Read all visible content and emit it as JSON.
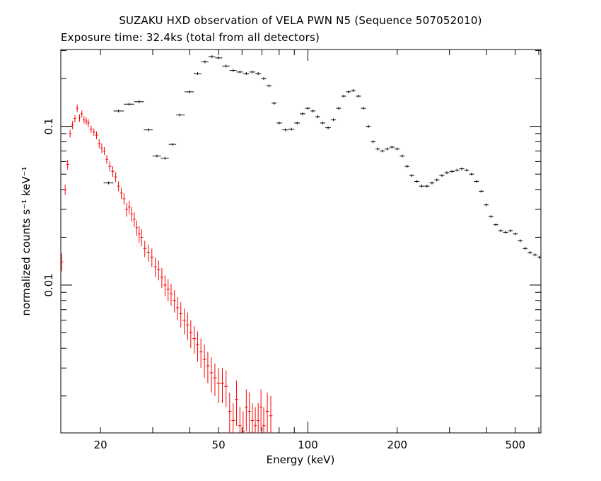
{
  "chart_data": {
    "type": "scatter",
    "title": "SUZAKU HXD observation of VELA PWN N5 (Sequence 507052010)",
    "subtitle": "Exposure time: 32.4ks (total from all detectors)",
    "xlabel": "Energy (keV)",
    "ylabel": "normalized counts s⁻¹ keV⁻¹",
    "xscale": "log",
    "yscale": "log",
    "xlim": [
      14.7,
      610
    ],
    "ylim": [
      0.00117,
      0.305
    ],
    "grid": false,
    "x_ticks": [
      {
        "value": 20,
        "label": "20"
      },
      {
        "value": 50,
        "label": "50"
      },
      {
        "value": 100,
        "label": "100"
      },
      {
        "value": 200,
        "label": "200"
      },
      {
        "value": 500,
        "label": "500"
      }
    ],
    "y_ticks": [
      {
        "value": 0.1,
        "label": "0.1"
      },
      {
        "value": 0.01,
        "label": "0.01"
      }
    ],
    "series": [
      {
        "color": "#ff0000",
        "points": [
          [
            14.8,
            0.014,
            0.0018
          ],
          [
            15.2,
            0.04,
            0.003
          ],
          [
            15.5,
            0.0575,
            0.004
          ],
          [
            15.8,
            0.09,
            0.005
          ],
          [
            16.1,
            0.102,
            0.006
          ],
          [
            16.4,
            0.112,
            0.006
          ],
          [
            16.7,
            0.13,
            0.007
          ],
          [
            17.0,
            0.113,
            0.006
          ],
          [
            17.3,
            0.12,
            0.006
          ],
          [
            17.6,
            0.11,
            0.006
          ],
          [
            17.9,
            0.108,
            0.006
          ],
          [
            18.2,
            0.105,
            0.006
          ],
          [
            18.6,
            0.096,
            0.005
          ],
          [
            19.0,
            0.092,
            0.005
          ],
          [
            19.4,
            0.088,
            0.005
          ],
          [
            19.8,
            0.078,
            0.005
          ],
          [
            20.2,
            0.073,
            0.005
          ],
          [
            20.6,
            0.07,
            0.004
          ],
          [
            21.0,
            0.062,
            0.004
          ],
          [
            21.5,
            0.056,
            0.004
          ],
          [
            22.0,
            0.052,
            0.004
          ],
          [
            22.5,
            0.048,
            0.0035
          ],
          [
            23.0,
            0.042,
            0.003
          ],
          [
            23.5,
            0.038,
            0.003
          ],
          [
            24.0,
            0.035,
            0.003
          ],
          [
            24.5,
            0.03,
            0.003
          ],
          [
            25.0,
            0.031,
            0.003
          ],
          [
            25.5,
            0.028,
            0.003
          ],
          [
            26.0,
            0.026,
            0.0028
          ],
          [
            26.5,
            0.023,
            0.0025
          ],
          [
            27.0,
            0.021,
            0.0025
          ],
          [
            27.5,
            0.02,
            0.0025
          ],
          [
            28.2,
            0.017,
            0.002
          ],
          [
            29.0,
            0.016,
            0.002
          ],
          [
            29.8,
            0.015,
            0.002
          ],
          [
            30.6,
            0.013,
            0.0018
          ],
          [
            31.4,
            0.0125,
            0.0018
          ],
          [
            32.2,
            0.0112,
            0.0016
          ],
          [
            33.0,
            0.01,
            0.0015
          ],
          [
            33.8,
            0.0094,
            0.0015
          ],
          [
            34.6,
            0.0088,
            0.0014
          ],
          [
            35.5,
            0.008,
            0.0013
          ],
          [
            36.4,
            0.0072,
            0.0012
          ],
          [
            37.3,
            0.0066,
            0.0012
          ],
          [
            38.3,
            0.006,
            0.0011
          ],
          [
            39.3,
            0.0056,
            0.0011
          ],
          [
            40.3,
            0.005,
            0.001
          ],
          [
            41.4,
            0.0046,
            0.0009
          ],
          [
            42.5,
            0.0042,
            0.0009
          ],
          [
            43.6,
            0.0038,
            0.0008
          ],
          [
            44.8,
            0.0034,
            0.0008
          ],
          [
            46.0,
            0.0031,
            0.0007
          ],
          [
            47.3,
            0.0028,
            0.0007
          ],
          [
            48.6,
            0.0026,
            0.0006
          ],
          [
            50.0,
            0.0024,
            0.0006
          ],
          [
            51.5,
            0.0024,
            0.0006
          ],
          [
            53.0,
            0.0023,
            0.0006
          ],
          [
            54.5,
            0.0016,
            0.0005
          ],
          [
            56.0,
            0.0014,
            0.0004
          ],
          [
            57.5,
            0.0019,
            0.0006
          ],
          [
            59.0,
            0.0013,
            0.0004
          ],
          [
            60.5,
            0.0012,
            0.0004
          ],
          [
            62.0,
            0.0017,
            0.0005
          ],
          [
            63.5,
            0.0016,
            0.0005
          ],
          [
            65.0,
            0.0014,
            0.0004
          ],
          [
            66.5,
            0.0013,
            0.0004
          ],
          [
            68.0,
            0.0014,
            0.0004
          ],
          [
            69.5,
            0.0017,
            0.0005
          ],
          [
            71.0,
            0.0013,
            0.0004
          ],
          [
            73.0,
            0.0016,
            0.0005
          ],
          [
            75.0,
            0.0015,
            0.0005
          ]
        ]
      },
      {
        "color": "#000000",
        "points": [
          [
            21.3,
            0.044
          ],
          [
            23.0,
            0.125
          ],
          [
            25.0,
            0.138
          ],
          [
            27.0,
            0.143
          ],
          [
            29.0,
            0.095
          ],
          [
            31.0,
            0.065
          ],
          [
            33.0,
            0.063
          ],
          [
            35.0,
            0.077
          ],
          [
            37.0,
            0.118
          ],
          [
            40.0,
            0.165
          ],
          [
            42.5,
            0.215
          ],
          [
            45.0,
            0.255
          ],
          [
            47.5,
            0.275
          ],
          [
            50.0,
            0.27
          ],
          [
            53.0,
            0.24
          ],
          [
            56.0,
            0.225
          ],
          [
            59.0,
            0.22
          ],
          [
            62.0,
            0.215
          ],
          [
            65.0,
            0.22
          ],
          [
            68.0,
            0.215
          ],
          [
            71.0,
            0.2
          ],
          [
            74.0,
            0.18
          ],
          [
            77.0,
            0.14
          ],
          [
            80.0,
            0.105
          ],
          [
            84.0,
            0.095
          ],
          [
            88.0,
            0.096
          ],
          [
            92.0,
            0.105
          ],
          [
            96.0,
            0.12
          ],
          [
            100.0,
            0.13
          ],
          [
            104.0,
            0.125
          ],
          [
            108.0,
            0.115
          ],
          [
            112.0,
            0.105
          ],
          [
            117.0,
            0.098
          ],
          [
            122.0,
            0.11
          ],
          [
            127.0,
            0.13
          ],
          [
            132.0,
            0.155
          ],
          [
            137.0,
            0.165
          ],
          [
            142.0,
            0.168
          ],
          [
            148.0,
            0.155
          ],
          [
            154.0,
            0.13
          ],
          [
            160.0,
            0.1
          ],
          [
            166.0,
            0.08
          ],
          [
            172.0,
            0.072
          ],
          [
            178.0,
            0.07
          ],
          [
            185.0,
            0.072
          ],
          [
            192.0,
            0.074
          ],
          [
            200.0,
            0.072
          ],
          [
            208.0,
            0.065
          ],
          [
            216.0,
            0.056
          ],
          [
            224.0,
            0.049
          ],
          [
            233.0,
            0.045
          ],
          [
            242.0,
            0.042
          ],
          [
            252.0,
            0.042
          ],
          [
            262.0,
            0.044
          ],
          [
            272.0,
            0.046
          ],
          [
            283.0,
            0.049
          ],
          [
            294.0,
            0.051
          ],
          [
            306.0,
            0.052
          ],
          [
            318.0,
            0.053
          ],
          [
            330.0,
            0.054
          ],
          [
            343.0,
            0.053
          ],
          [
            356.0,
            0.05
          ],
          [
            370.0,
            0.045
          ],
          [
            384.0,
            0.039
          ],
          [
            399.0,
            0.032
          ],
          [
            414.0,
            0.027
          ],
          [
            430.0,
            0.024
          ],
          [
            447.0,
            0.022
          ],
          [
            464.0,
            0.0215
          ],
          [
            482.0,
            0.022
          ],
          [
            500.0,
            0.021
          ],
          [
            520.0,
            0.019
          ],
          [
            540.0,
            0.017
          ],
          [
            561.0,
            0.016
          ],
          [
            583.0,
            0.0155
          ],
          [
            605.0,
            0.015
          ]
        ]
      }
    ]
  }
}
